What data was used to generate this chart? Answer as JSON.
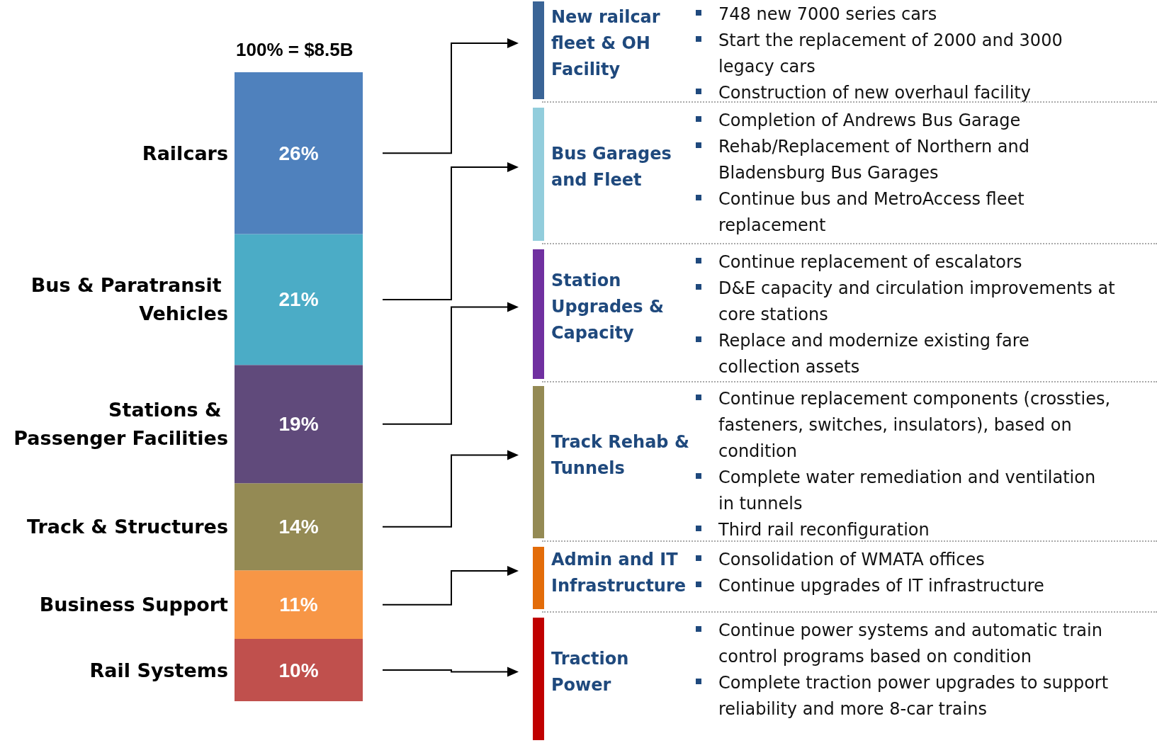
{
  "chart_data": [
    {
      "type": "bar",
      "stacked": true,
      "title": "100% = $8.5B",
      "categories": [
        null
      ],
      "series": [
        {
          "name": "Rail Systems",
          "color": "#c0504d",
          "values": [
            10
          ],
          "value_labels": [
            "10%"
          ]
        },
        {
          "name": "Business Support",
          "color": "#f79646",
          "values": [
            11
          ],
          "value_labels": [
            "11%"
          ]
        },
        {
          "name": "Track & Structures",
          "color": "#948a54",
          "values": [
            14
          ],
          "value_labels": [
            "14%"
          ]
        },
        {
          "name": "Stations & Passenger Facilities",
          "color": "#604a7b",
          "values": [
            19
          ],
          "value_labels": [
            "19%"
          ]
        },
        {
          "name": "Bus & Paratransit Vehicles",
          "color": "#4bacc6",
          "values": [
            21
          ],
          "value_labels": [
            "21%"
          ]
        },
        {
          "name": "Railcars",
          "color": "#4f81bd",
          "values": [
            26
          ],
          "value_labels": [
            "26%"
          ]
        }
      ]
    },
    {
      "type": "other",
      "title": "New railcar fleet & OH Facility",
      "color": "#3a6496",
      "annotations": [
        "748 new 7000 series cars",
        "Start the replacement of 2000 and 3000 legacy cars",
        "Construction of new overhaul facility"
      ]
    },
    {
      "type": "other",
      "title": "Bus Garages and Fleet",
      "color": "#92cddc",
      "annotations": [
        "Completion of Andrews Bus Garage",
        "Rehab/Replacement of Northern and Bladensburg Bus Garages",
        "Continue bus and MetroAccess fleet replacement"
      ]
    },
    {
      "type": "other",
      "title": "Station Upgrades & Capacity",
      "color": "#7030a0",
      "annotations": [
        "Continue replacement of escalators",
        "D&E capacity and circulation improvements at core stations",
        "Replace and modernize existing fare collection assets"
      ]
    },
    {
      "type": "other",
      "title": "Track Rehab & Tunnels",
      "color": "#948a54",
      "annotations": [
        "Continue replacement components (crossties, fasteners, switches, insulators), based on condition",
        "Complete water remediation and ventilation in tunnels",
        "Third rail reconfiguration"
      ]
    },
    {
      "type": "other",
      "title": "Admin and IT Infrastructure",
      "color": "#e36c09",
      "annotations": [
        "Consolidation of WMATA offices",
        "Continue upgrades of IT infrastructure"
      ]
    },
    {
      "type": "other",
      "title": "Traction Power",
      "color": "#c00000",
      "annotations": [
        "Continue power systems and automatic train control programs based on condition",
        "Complete traction power upgrades to support reliability and more 8-car trains"
      ]
    }
  ]
}
